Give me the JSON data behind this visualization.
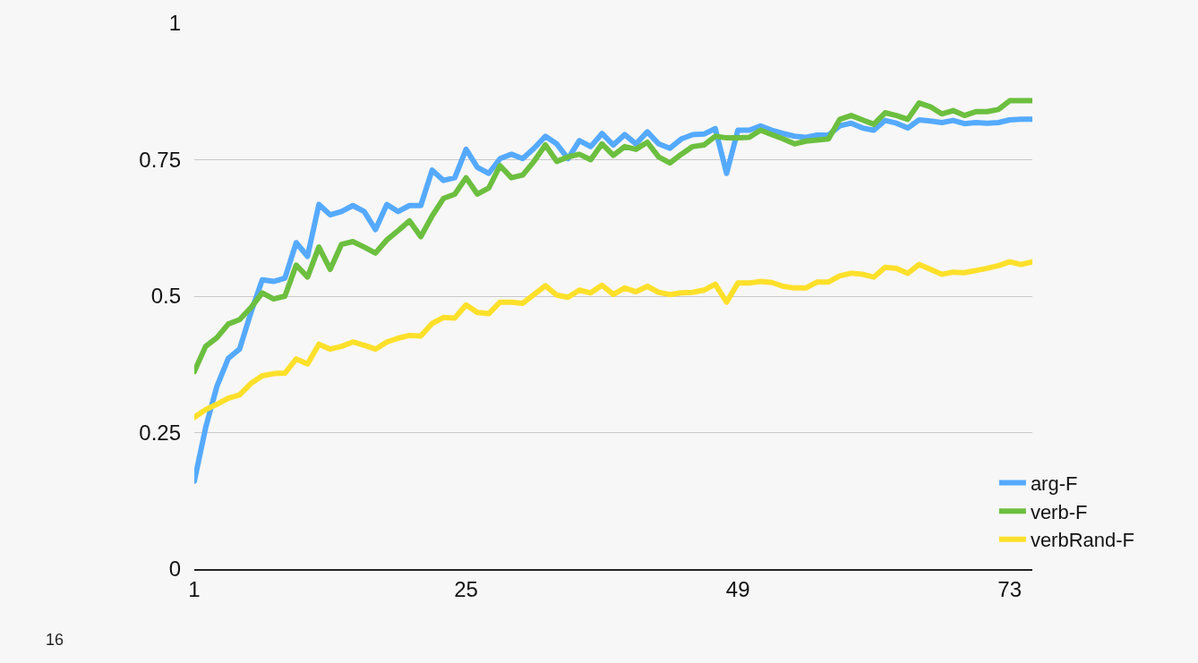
{
  "chart_data": {
    "type": "line",
    "x": [
      1,
      2,
      3,
      4,
      5,
      6,
      7,
      8,
      9,
      10,
      11,
      12,
      13,
      14,
      15,
      16,
      17,
      18,
      19,
      20,
      21,
      22,
      23,
      24,
      25,
      26,
      27,
      28,
      29,
      30,
      31,
      32,
      33,
      34,
      35,
      36,
      37,
      38,
      39,
      40,
      41,
      42,
      43,
      44,
      45,
      46,
      47,
      48,
      49,
      50,
      51,
      52,
      53,
      54,
      55,
      56,
      57,
      58,
      59,
      60,
      61,
      62,
      63,
      64,
      65,
      66,
      67,
      68,
      69,
      70,
      71,
      72,
      73,
      74,
      75
    ],
    "series": [
      {
        "name": "arg-F",
        "color": "#55aaff",
        "values": [
          0.161,
          0.259,
          0.335,
          0.386,
          0.403,
          0.47,
          0.53,
          0.527,
          0.533,
          0.598,
          0.573,
          0.668,
          0.649,
          0.655,
          0.666,
          0.655,
          0.622,
          0.668,
          0.655,
          0.666,
          0.666,
          0.731,
          0.712,
          0.717,
          0.769,
          0.736,
          0.725,
          0.752,
          0.76,
          0.752,
          0.771,
          0.793,
          0.779,
          0.752,
          0.785,
          0.774,
          0.798,
          0.777,
          0.796,
          0.779,
          0.801,
          0.779,
          0.771,
          0.788,
          0.796,
          0.797,
          0.807,
          0.725,
          0.804,
          0.804,
          0.812,
          0.804,
          0.798,
          0.793,
          0.791,
          0.795,
          0.795,
          0.812,
          0.817,
          0.808,
          0.804,
          0.822,
          0.817,
          0.808,
          0.823,
          0.821,
          0.818,
          0.822,
          0.816,
          0.818,
          0.817,
          0.818,
          0.823,
          0.824,
          0.824
        ]
      },
      {
        "name": "verb-F",
        "color": "#6cbf3f",
        "values": [
          0.362,
          0.408,
          0.424,
          0.449,
          0.457,
          0.479,
          0.506,
          0.495,
          0.5,
          0.557,
          0.535,
          0.59,
          0.549,
          0.595,
          0.6,
          0.59,
          0.579,
          0.603,
          0.62,
          0.638,
          0.609,
          0.647,
          0.679,
          0.687,
          0.717,
          0.687,
          0.698,
          0.739,
          0.717,
          0.722,
          0.747,
          0.777,
          0.747,
          0.755,
          0.76,
          0.75,
          0.779,
          0.758,
          0.774,
          0.769,
          0.782,
          0.755,
          0.744,
          0.76,
          0.774,
          0.777,
          0.793,
          0.79,
          0.79,
          0.791,
          0.804,
          0.796,
          0.788,
          0.779,
          0.784,
          0.786,
          0.788,
          0.824,
          0.831,
          0.823,
          0.815,
          0.836,
          0.831,
          0.824,
          0.854,
          0.847,
          0.834,
          0.84,
          0.831,
          0.838,
          0.838,
          0.842,
          0.858,
          0.858,
          0.858
        ]
      },
      {
        "name": "verbRand-F",
        "color": "#fde02a",
        "values": [
          0.278,
          0.292,
          0.302,
          0.313,
          0.319,
          0.34,
          0.354,
          0.358,
          0.359,
          0.385,
          0.376,
          0.412,
          0.403,
          0.408,
          0.416,
          0.41,
          0.403,
          0.416,
          0.423,
          0.428,
          0.427,
          0.45,
          0.461,
          0.46,
          0.484,
          0.47,
          0.468,
          0.489,
          0.489,
          0.487,
          0.503,
          0.519,
          0.502,
          0.498,
          0.511,
          0.506,
          0.52,
          0.503,
          0.515,
          0.508,
          0.518,
          0.507,
          0.503,
          0.506,
          0.507,
          0.511,
          0.522,
          0.489,
          0.524,
          0.524,
          0.527,
          0.525,
          0.518,
          0.515,
          0.515,
          0.526,
          0.526,
          0.537,
          0.542,
          0.54,
          0.535,
          0.553,
          0.551,
          0.542,
          0.558,
          0.549,
          0.54,
          0.544,
          0.543,
          0.547,
          0.551,
          0.556,
          0.563,
          0.558,
          0.563
        ]
      }
    ],
    "xlim": [
      1,
      75
    ],
    "xticks": [
      1,
      25,
      49,
      73
    ],
    "ylim": [
      0,
      1
    ],
    "yticks": [
      0,
      0.25,
      0.5,
      0.75,
      1
    ],
    "grid": "y",
    "legend": "bottom right",
    "marker": "none",
    "line_style": "solid",
    "annotations": [
      "16"
    ]
  }
}
